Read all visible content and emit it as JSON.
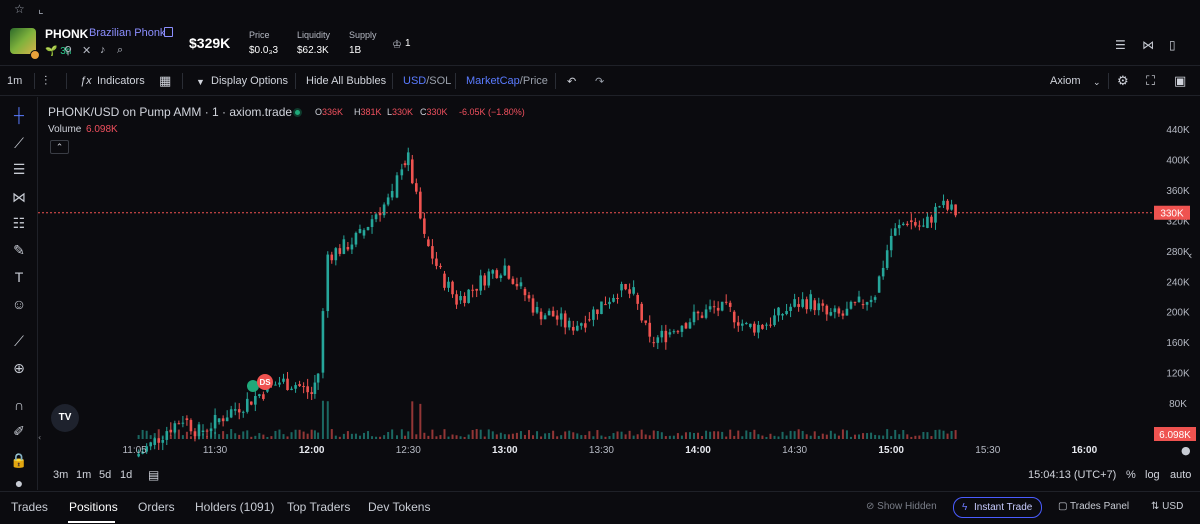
{
  "topbar": {
    "star_icon": "star-icon",
    "chart_icon": "chart-icon"
  },
  "token": {
    "symbol": "PHONK",
    "name": "Brazilian Phonk",
    "age": "3h",
    "market_cap": "$329K",
    "stats": [
      {
        "label": "Price",
        "value": "$0.0₃3"
      },
      {
        "label": "Liquidity",
        "value": "$62.3K"
      },
      {
        "label": "Supply",
        "value": "1B"
      }
    ],
    "holders_count": "1"
  },
  "toolbar": {
    "interval": "1m",
    "indicators": "Indicators",
    "display_options": "Display Options",
    "hide_bubbles": "Hide All Bubbles",
    "currency_usd": "USD",
    "currency_sol": "/SOL",
    "metric_mc": "MarketCap",
    "metric_price": "/Price",
    "source": "Axiom"
  },
  "legend": {
    "title": "PHONK/USD on Pump AMM · 1 · axiom.trade",
    "o_label": "O",
    "o_value": "336K",
    "h_label": "H",
    "h_value": "381K",
    "l_label": "L",
    "l_value": "330K",
    "c_label": "C",
    "c_value": "330K",
    "change": "-6.05K (−1.80%)",
    "volume_label": "Volume",
    "volume_value": "6.098K"
  },
  "markers": {
    "ds_label": "DS",
    "tv_logo": "TV"
  },
  "range_bar": {
    "ranges": [
      "3m",
      "1m",
      "5d",
      "1d"
    ],
    "time": "15:04:13 (UTC+7)",
    "percent": "%",
    "log": "log",
    "auto": "auto"
  },
  "bottom_tabs": [
    "Trades",
    "Positions",
    "Orders",
    "Holders (1091)",
    "Top Traders",
    "Dev Tokens"
  ],
  "bottom_right": {
    "show_hidden": "Show Hidden",
    "instant_trade": "Instant Trade",
    "trades_panel": "Trades Panel",
    "currency": "USD"
  },
  "colors": {
    "up": "#26a69a",
    "down": "#ef5350",
    "accent": "#5a7bff",
    "background": "#0b0b0f"
  },
  "chart_data": {
    "type": "candlestick",
    "title": "PHONK/USD on Pump AMM · 1 · axiom.trade",
    "y_unit": "market cap (USD)",
    "y_ticks": [
      "440K",
      "400K",
      "360K",
      "320K",
      "280K",
      "240K",
      "200K",
      "160K",
      "120K",
      "80K",
      "40K"
    ],
    "x_ticks": [
      "11:05",
      "11:30",
      "12:00",
      "12:30",
      "13:00",
      "13:30",
      "14:00",
      "14:30",
      "15:00",
      "15:30",
      "16:00"
    ],
    "x_range": [
      "10:35",
      "16:21"
    ],
    "ylim": [
      0,
      482
    ],
    "current_price_label": "330K",
    "current_price": 330,
    "volume_label": "6.098K",
    "series_close": [
      [
        "11:05",
        10
      ],
      [
        "11:10",
        25
      ],
      [
        "11:15",
        45
      ],
      [
        "11:20",
        60
      ],
      [
        "11:25",
        42
      ],
      [
        "11:30",
        55
      ],
      [
        "11:35",
        70
      ],
      [
        "11:40",
        82
      ],
      [
        "11:45",
        95
      ],
      [
        "11:50",
        108
      ],
      [
        "11:55",
        105
      ],
      [
        "12:00",
        92
      ],
      [
        "12:02",
        120
      ],
      [
        "12:05",
        275
      ],
      [
        "12:10",
        285
      ],
      [
        "12:15",
        300
      ],
      [
        "12:20",
        330
      ],
      [
        "12:25",
        350
      ],
      [
        "12:28",
        395
      ],
      [
        "12:30",
        400
      ],
      [
        "12:35",
        295
      ],
      [
        "12:40",
        250
      ],
      [
        "12:45",
        215
      ],
      [
        "12:50",
        230
      ],
      [
        "12:55",
        250
      ],
      [
        "13:00",
        260
      ],
      [
        "13:05",
        230
      ],
      [
        "13:10",
        200
      ],
      [
        "13:15",
        195
      ],
      [
        "13:20",
        180
      ],
      [
        "13:25",
        190
      ],
      [
        "13:30",
        210
      ],
      [
        "13:35",
        228
      ],
      [
        "13:40",
        222
      ],
      [
        "13:45",
        160
      ],
      [
        "13:50",
        170
      ],
      [
        "13:55",
        185
      ],
      [
        "14:00",
        195
      ],
      [
        "14:05",
        205
      ],
      [
        "14:10",
        200
      ],
      [
        "14:15",
        180
      ],
      [
        "14:20",
        182
      ],
      [
        "14:25",
        195
      ],
      [
        "14:30",
        210
      ],
      [
        "14:35",
        215
      ],
      [
        "14:40",
        195
      ],
      [
        "14:45",
        195
      ],
      [
        "14:50",
        210
      ],
      [
        "14:55",
        225
      ],
      [
        "15:00",
        300
      ],
      [
        "15:05",
        320
      ],
      [
        "15:10",
        310
      ],
      [
        "15:15",
        340
      ],
      [
        "15:20",
        330
      ]
    ]
  }
}
